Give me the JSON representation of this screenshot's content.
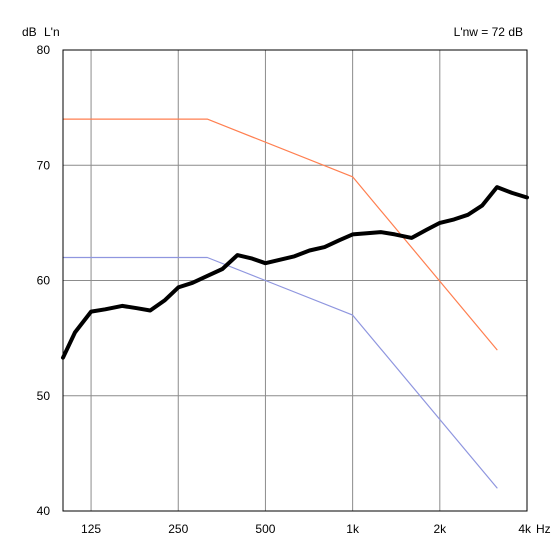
{
  "chart_data": {
    "type": "line",
    "y_unit": "dB",
    "y_quantity": "L'n",
    "annotation": "L'nw = 72 dB",
    "x_unit": "Hz",
    "x_scale": "log",
    "xlim": [
      100,
      4000
    ],
    "ylim": [
      40,
      80
    ],
    "y_ticks": [
      40,
      50,
      60,
      70,
      80
    ],
    "x_ticks": [
      {
        "value": 125,
        "label": "125"
      },
      {
        "value": 250,
        "label": "250"
      },
      {
        "value": 500,
        "label": "500"
      },
      {
        "value": 1000,
        "label": "1k"
      },
      {
        "value": 2000,
        "label": "2k"
      },
      {
        "value": 4000,
        "label": "4k"
      }
    ],
    "grid": true,
    "series": [
      {
        "color": "#ff7f50",
        "style": "thin",
        "x": [
          100,
          315,
          1000,
          3150
        ],
        "y": [
          74,
          74,
          69,
          54
        ]
      },
      {
        "color": "#8f96df",
        "style": "thin",
        "x": [
          100,
          315,
          500,
          1000,
          3150
        ],
        "y": [
          62,
          62,
          60,
          57,
          42
        ]
      },
      {
        "color": "#000000",
        "style": "bold",
        "x": [
          100,
          110,
          125,
          140,
          160,
          180,
          200,
          225,
          250,
          280,
          315,
          355,
          400,
          450,
          500,
          560,
          630,
          710,
          800,
          900,
          1000,
          1120,
          1250,
          1400,
          1600,
          1800,
          2000,
          2240,
          2500,
          2800,
          3150,
          3550,
          4000
        ],
        "y": [
          53.3,
          55.5,
          57.3,
          57.5,
          57.8,
          57.6,
          57.4,
          58.3,
          59.4,
          59.8,
          60.4,
          61.0,
          62.2,
          61.9,
          61.5,
          61.8,
          62.1,
          62.6,
          62.9,
          63.5,
          64.0,
          64.1,
          64.2,
          64.0,
          63.7,
          64.4,
          65.0,
          65.3,
          65.7,
          66.5,
          68.1,
          67.6,
          67.2
        ]
      }
    ]
  }
}
